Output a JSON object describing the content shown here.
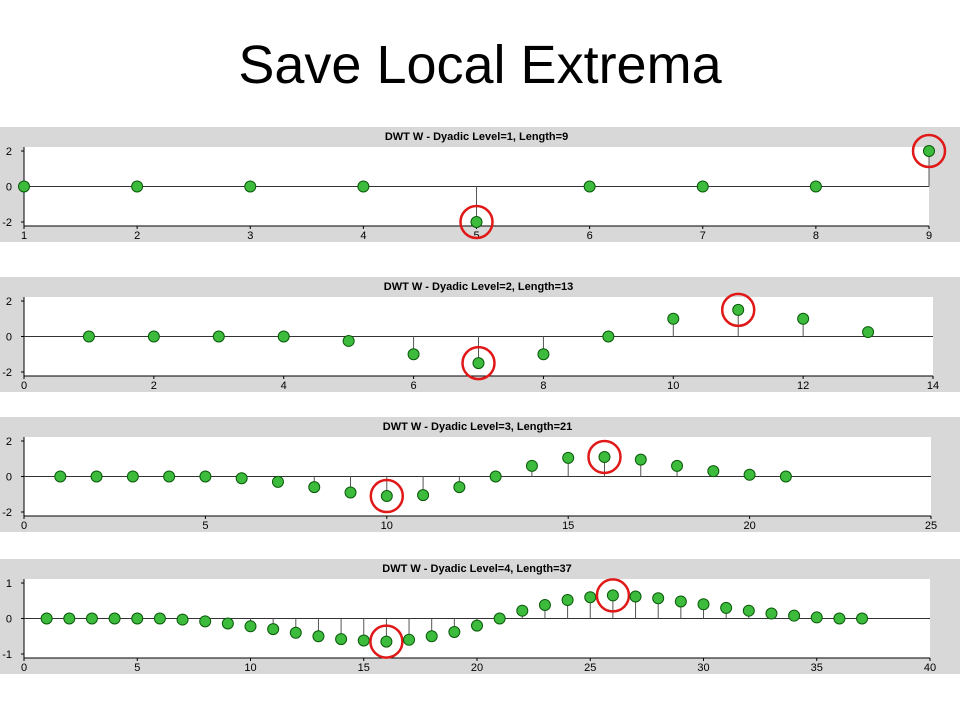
{
  "page": {
    "title": "Save Local Extrema"
  },
  "colors": {
    "panel_bg": "#d8d8d8",
    "plot_bg": "#ffffff",
    "marker_fill": "#3dbb3d",
    "marker_stroke": "#0a5a0a",
    "highlight": "#e01818",
    "stem": "#555555"
  },
  "chart_data": [
    {
      "type": "scatter",
      "title": "DWT W - Dyadic Level=1, Length=9",
      "x": [
        1,
        2,
        3,
        4,
        5,
        6,
        7,
        8,
        9
      ],
      "y": [
        0,
        0,
        0,
        0,
        -2,
        0,
        0,
        0,
        2
      ],
      "xlim": [
        1,
        9
      ],
      "ylim": [
        -2,
        2
      ],
      "xticks": [
        1,
        2,
        3,
        4,
        5,
        6,
        7,
        8,
        9
      ],
      "yticks": [
        -2,
        0,
        2
      ],
      "highlighted_x": [
        5,
        9
      ],
      "style": "stem",
      "grid": false,
      "legend": "none"
    },
    {
      "type": "scatter",
      "title": "DWT W - Dyadic Level=2, Length=13",
      "x": [
        1,
        2,
        3,
        4,
        5,
        6,
        7,
        8,
        9,
        10,
        11,
        12,
        13
      ],
      "y": [
        0,
        0,
        0,
        0,
        -0.25,
        -1,
        -1.5,
        -1,
        0,
        1,
        1.5,
        1,
        0.25
      ],
      "xlim": [
        0,
        14
      ],
      "ylim": [
        -2,
        2
      ],
      "xticks": [
        0,
        2,
        4,
        6,
        8,
        10,
        12,
        14
      ],
      "yticks": [
        -2,
        0,
        2
      ],
      "highlighted_x": [
        7,
        11
      ],
      "style": "stem",
      "grid": false,
      "legend": "none"
    },
    {
      "type": "scatter",
      "title": "DWT W - Dyadic Level=3, Length=21",
      "x": [
        1,
        2,
        3,
        4,
        5,
        6,
        7,
        8,
        9,
        10,
        11,
        12,
        13,
        14,
        15,
        16,
        17,
        18,
        19,
        20,
        21
      ],
      "y": [
        0,
        0,
        0,
        0,
        0,
        -0.1,
        -0.3,
        -0.6,
        -0.9,
        -1.1,
        -1.05,
        -0.6,
        0,
        0.6,
        1.05,
        1.1,
        0.95,
        0.6,
        0.3,
        0.1,
        0
      ],
      "xlim": [
        0,
        25
      ],
      "ylim": [
        -2,
        2
      ],
      "xticks": [
        0,
        5,
        10,
        15,
        20,
        25
      ],
      "yticks": [
        -2,
        0,
        2
      ],
      "highlighted_x": [
        10,
        16
      ],
      "style": "stem",
      "grid": false,
      "legend": "none"
    },
    {
      "type": "scatter",
      "title": "DWT W - Dyadic Level=4, Length=37",
      "x": [
        1,
        2,
        3,
        4,
        5,
        6,
        7,
        8,
        9,
        10,
        11,
        12,
        13,
        14,
        15,
        16,
        17,
        18,
        19,
        20,
        21,
        22,
        23,
        24,
        25,
        26,
        27,
        28,
        29,
        30,
        31,
        32,
        33,
        34,
        35,
        36,
        37
      ],
      "y": [
        0,
        0,
        0,
        0,
        0,
        0,
        -0.03,
        -0.08,
        -0.14,
        -0.22,
        -0.3,
        -0.4,
        -0.5,
        -0.58,
        -0.62,
        -0.65,
        -0.6,
        -0.5,
        -0.38,
        -0.2,
        0,
        0.22,
        0.38,
        0.52,
        0.6,
        0.65,
        0.62,
        0.57,
        0.48,
        0.4,
        0.3,
        0.22,
        0.14,
        0.08,
        0.03,
        0,
        0
      ],
      "xlim": [
        0,
        40
      ],
      "ylim": [
        -1,
        1
      ],
      "xticks": [
        0,
        5,
        10,
        15,
        20,
        25,
        30,
        35,
        40
      ],
      "yticks": [
        -1,
        0,
        1
      ],
      "highlighted_x": [
        16,
        26
      ],
      "style": "stem",
      "grid": false,
      "legend": "none"
    }
  ]
}
